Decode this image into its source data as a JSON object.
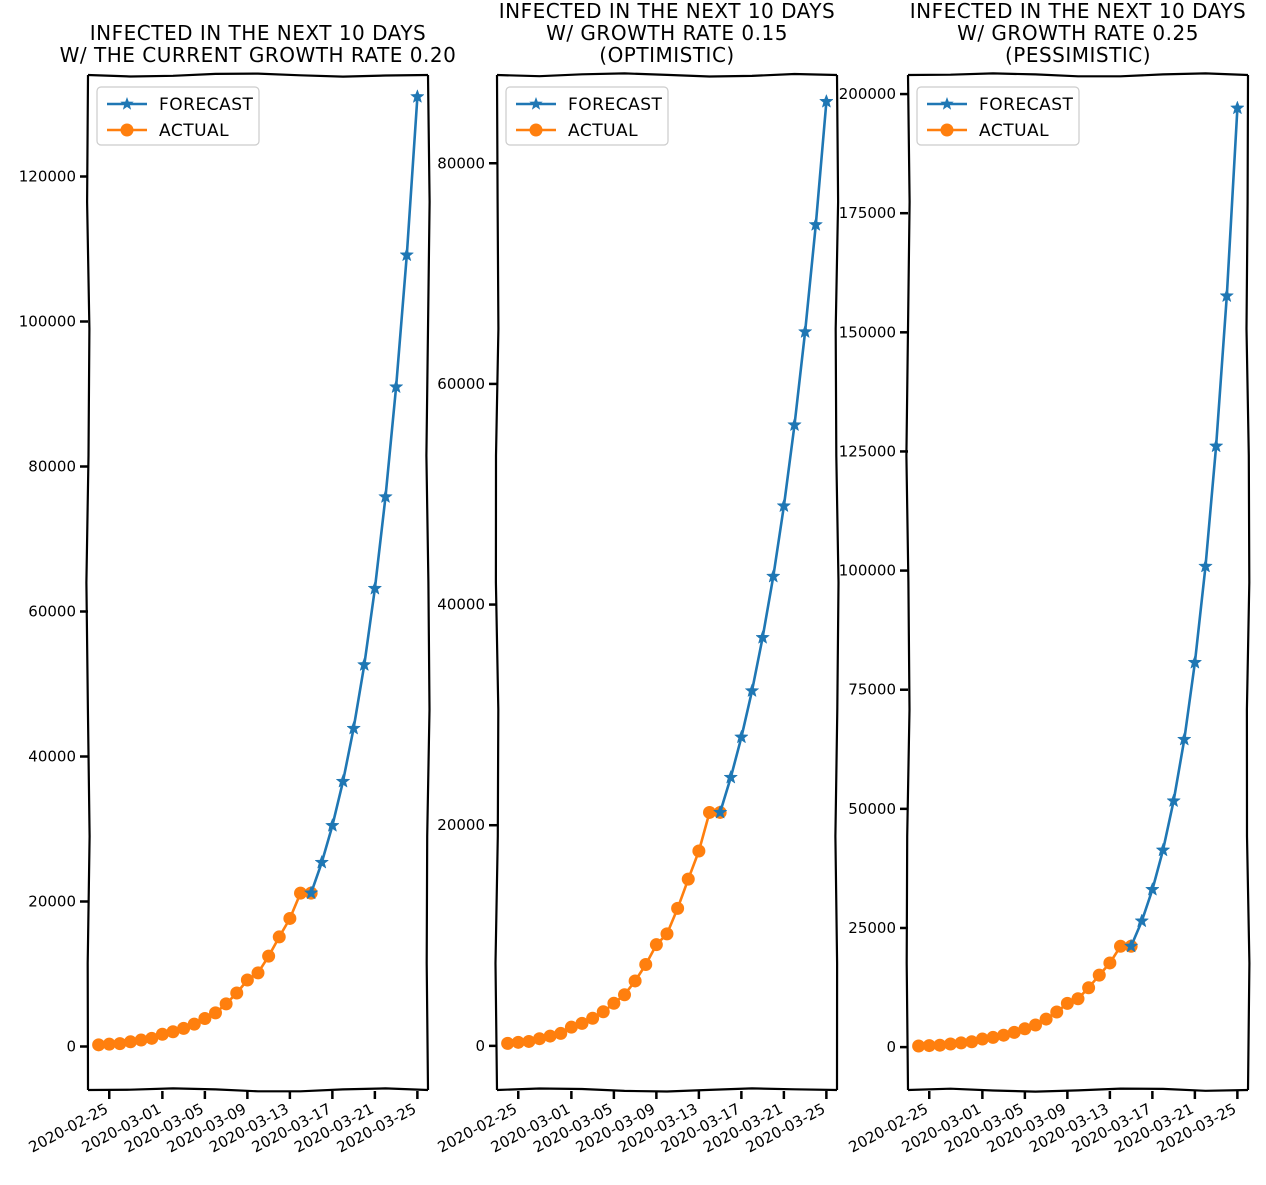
{
  "figure": {
    "colors": {
      "forecast": "#1f77b4",
      "actual": "#ff7f0e",
      "axes": "#000000",
      "background": "#ffffff"
    },
    "style": "xkcd"
  },
  "chart_data": [
    {
      "type": "line",
      "title_lines": [
        "INFECTED IN THE NEXT 10 DAYS",
        "W/ THE CURRENT GROWTH RATE 0.20"
      ],
      "xlabel": "",
      "ylabel": "",
      "x_ticks": [
        "2020-02-25",
        "2020-03-01",
        "2020-03-05",
        "2020-03-09",
        "2020-03-13",
        "2020-03-17",
        "2020-03-21",
        "2020-03-25"
      ],
      "y_ticks": [
        "0",
        "20000",
        "40000",
        "60000",
        "80000",
        "100000",
        "120000"
      ],
      "ylim": [
        -6000,
        134000
      ],
      "legend": "top-left",
      "grid": false,
      "series": [
        {
          "name": "FORECAST",
          "marker": "star",
          "x": [
            "2020-03-15",
            "2020-03-16",
            "2020-03-17",
            "2020-03-18",
            "2020-03-19",
            "2020-03-20",
            "2020-03-21",
            "2020-03-22",
            "2020-03-23",
            "2020-03-24",
            "2020-03-25"
          ],
          "values": [
            21157,
            25388,
            30466,
            36559,
            43871,
            52645,
            63174,
            75809,
            90970,
            109164,
            130997
          ]
        },
        {
          "name": "ACTUAL",
          "marker": "circle",
          "x": [
            "2020-02-24",
            "2020-02-25",
            "2020-02-26",
            "2020-02-27",
            "2020-02-28",
            "2020-02-29",
            "2020-03-01",
            "2020-03-02",
            "2020-03-03",
            "2020-03-04",
            "2020-03-05",
            "2020-03-06",
            "2020-03-07",
            "2020-03-08",
            "2020-03-09",
            "2020-03-10",
            "2020-03-11",
            "2020-03-12",
            "2020-03-13",
            "2020-03-14",
            "2020-03-15"
          ],
          "values": [
            229,
            322,
            400,
            650,
            888,
            1128,
            1694,
            2036,
            2502,
            3089,
            3858,
            4636,
            5883,
            7375,
            9172,
            10149,
            12462,
            15113,
            17660,
            21157,
            21157
          ]
        }
      ]
    },
    {
      "type": "line",
      "title_lines": [
        "INFECTED IN THE NEXT 10 DAYS",
        "W/ GROWTH RATE 0.15",
        "(OPTIMISTIC)"
      ],
      "xlabel": "",
      "ylabel": "",
      "x_ticks": [
        "2020-02-25",
        "2020-03-01",
        "2020-03-05",
        "2020-03-09",
        "2020-03-13",
        "2020-03-17",
        "2020-03-21",
        "2020-03-25"
      ],
      "y_ticks": [
        "0",
        "20000",
        "40000",
        "60000",
        "80000"
      ],
      "ylim": [
        -4000,
        88000
      ],
      "legend": "top-left",
      "grid": false,
      "series": [
        {
          "name": "FORECAST",
          "marker": "star",
          "x": [
            "2020-03-15",
            "2020-03-16",
            "2020-03-17",
            "2020-03-18",
            "2020-03-19",
            "2020-03-20",
            "2020-03-21",
            "2020-03-22",
            "2020-03-23",
            "2020-03-24",
            "2020-03-25"
          ],
          "values": [
            21157,
            24331,
            27980,
            32177,
            37004,
            42554,
            48937,
            56278,
            64720,
            74428,
            85592
          ]
        },
        {
          "name": "ACTUAL",
          "marker": "circle",
          "x": [
            "2020-02-24",
            "2020-02-25",
            "2020-02-26",
            "2020-02-27",
            "2020-02-28",
            "2020-02-29",
            "2020-03-01",
            "2020-03-02",
            "2020-03-03",
            "2020-03-04",
            "2020-03-05",
            "2020-03-06",
            "2020-03-07",
            "2020-03-08",
            "2020-03-09",
            "2020-03-10",
            "2020-03-11",
            "2020-03-12",
            "2020-03-13",
            "2020-03-14",
            "2020-03-15"
          ],
          "values": [
            229,
            322,
            400,
            650,
            888,
            1128,
            1694,
            2036,
            2502,
            3089,
            3858,
            4636,
            5883,
            7375,
            9172,
            10149,
            12462,
            15113,
            17660,
            21157,
            21157
          ]
        }
      ]
    },
    {
      "type": "line",
      "title_lines": [
        "INFECTED IN THE NEXT 10 DAYS",
        "W/ GROWTH RATE 0.25",
        "(PESSIMISTIC)"
      ],
      "xlabel": "",
      "ylabel": "",
      "x_ticks": [
        "2020-02-25",
        "2020-03-01",
        "2020-03-05",
        "2020-03-09",
        "2020-03-13",
        "2020-03-17",
        "2020-03-21",
        "2020-03-25"
      ],
      "y_ticks": [
        "0",
        "25000",
        "50000",
        "75000",
        "100000",
        "125000",
        "150000",
        "175000",
        "200000"
      ],
      "ylim": [
        -9000,
        204000
      ],
      "legend": "top-left",
      "grid": false,
      "series": [
        {
          "name": "FORECAST",
          "marker": "star",
          "x": [
            "2020-03-15",
            "2020-03-16",
            "2020-03-17",
            "2020-03-18",
            "2020-03-19",
            "2020-03-20",
            "2020-03-21",
            "2020-03-22",
            "2020-03-23",
            "2020-03-24",
            "2020-03-25"
          ],
          "values": [
            21157,
            26446,
            33058,
            41322,
            51653,
            64566,
            80708,
            100885,
            126106,
            157633,
            197041
          ]
        },
        {
          "name": "ACTUAL",
          "marker": "circle",
          "x": [
            "2020-02-24",
            "2020-02-25",
            "2020-02-26",
            "2020-02-27",
            "2020-02-28",
            "2020-02-29",
            "2020-03-01",
            "2020-03-02",
            "2020-03-03",
            "2020-03-04",
            "2020-03-05",
            "2020-03-06",
            "2020-03-07",
            "2020-03-08",
            "2020-03-09",
            "2020-03-10",
            "2020-03-11",
            "2020-03-12",
            "2020-03-13",
            "2020-03-14",
            "2020-03-15"
          ],
          "values": [
            229,
            322,
            400,
            650,
            888,
            1128,
            1694,
            2036,
            2502,
            3089,
            3858,
            4636,
            5883,
            7375,
            9172,
            10149,
            12462,
            15113,
            17660,
            21157,
            21157
          ]
        }
      ]
    }
  ]
}
